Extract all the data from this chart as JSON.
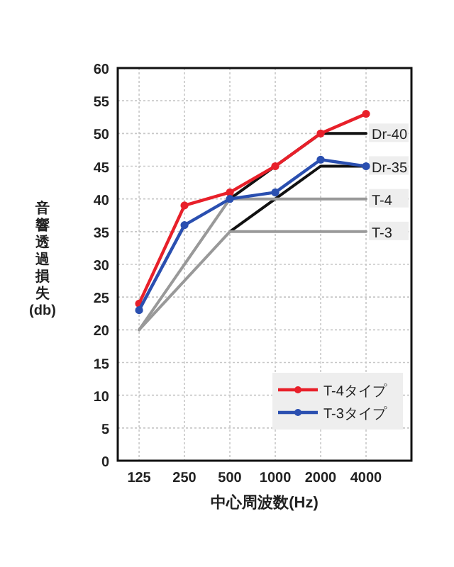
{
  "chart_data": {
    "type": "line",
    "xlabel": "中心周波数(Hz)",
    "ylabel": "音響透過損失(db)",
    "categories": [
      "125",
      "250",
      "500",
      "1000",
      "2000",
      "4000"
    ],
    "ylim": [
      0,
      60
    ],
    "yticks": [
      0,
      5,
      10,
      15,
      20,
      25,
      30,
      35,
      40,
      45,
      50,
      55,
      60
    ],
    "grid": true,
    "legend": "bottom right",
    "series": [
      {
        "name": "Dr-40",
        "color": "#111111",
        "marker": "none",
        "values": [
          null,
          null,
          40,
          45,
          50,
          50
        ]
      },
      {
        "name": "Dr-35",
        "color": "#111111",
        "marker": "none",
        "values": [
          null,
          null,
          35,
          40,
          45,
          45
        ]
      },
      {
        "name": "T-4",
        "color": "#999999",
        "marker": "none",
        "values": [
          20,
          30,
          40,
          40,
          40,
          40
        ]
      },
      {
        "name": "T-3",
        "color": "#999999",
        "marker": "none",
        "values": [
          20,
          27.5,
          35,
          35,
          35,
          35
        ]
      },
      {
        "name": "T-4タイプ",
        "color": "#e8202a",
        "marker": "circle",
        "values": [
          24,
          39,
          41,
          45,
          50,
          53
        ]
      },
      {
        "name": "T-3タイプ",
        "color": "#2a4fb0",
        "marker": "circle",
        "values": [
          23,
          36,
          40,
          41,
          46,
          45
        ]
      }
    ]
  }
}
